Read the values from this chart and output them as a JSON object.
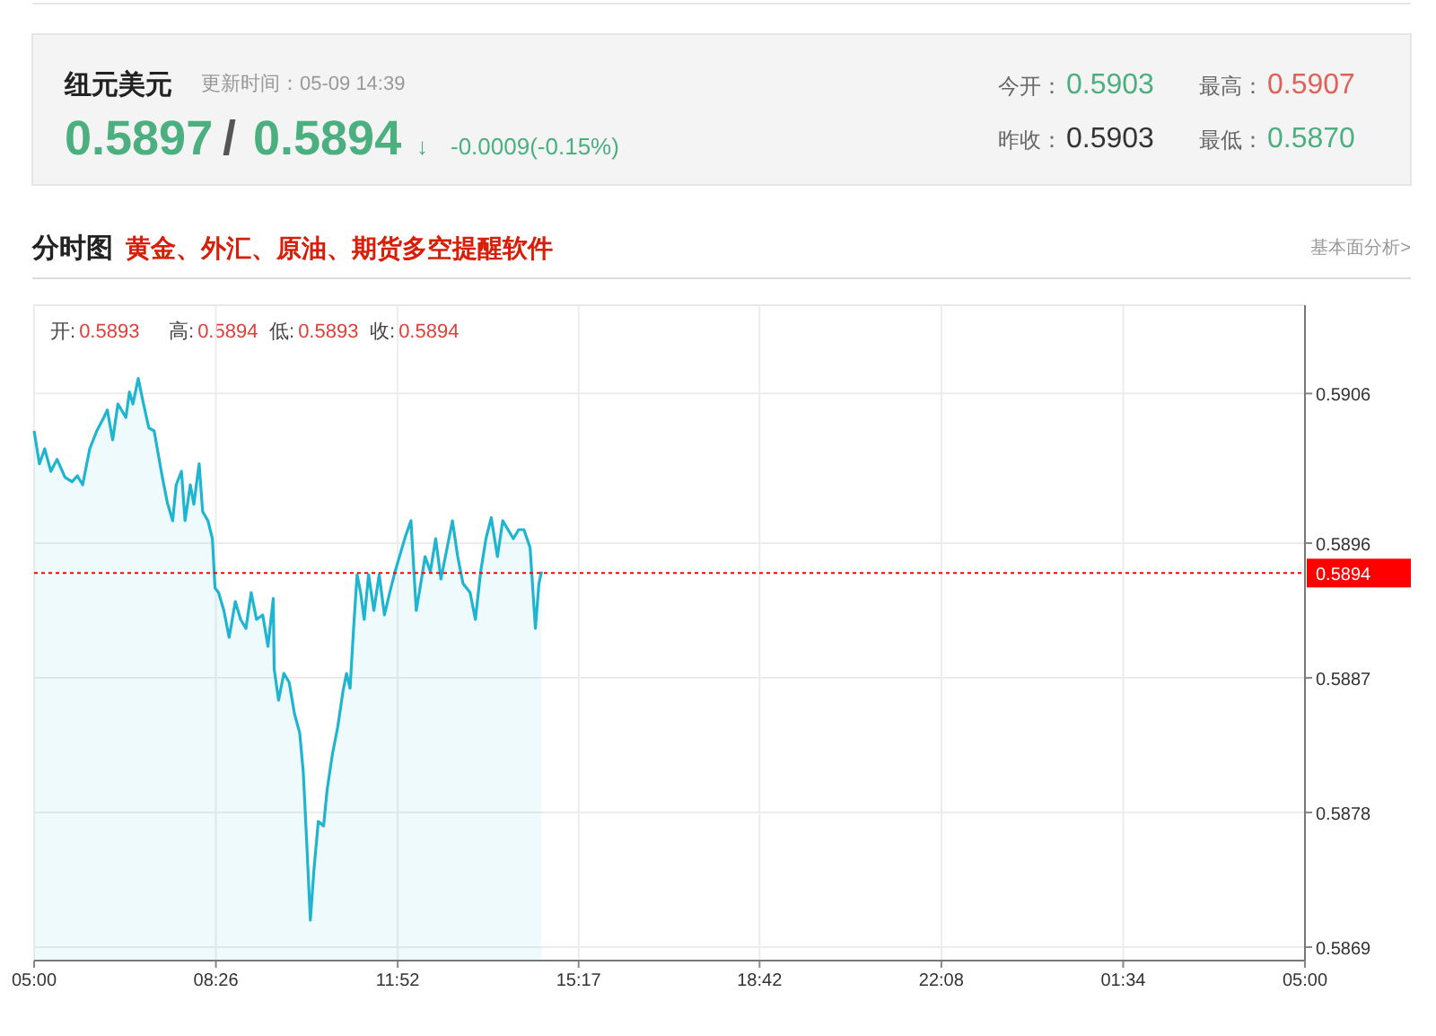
{
  "chart_data": {
    "type": "area",
    "title": "纽元美元",
    "subtitle": "更新时间：05-09 14:39",
    "annotations": [
      "0.5897",
      "/",
      "0.5894",
      "↓",
      "-0.0009(-0.15%)",
      "今开：0.5903",
      "最高：0.5907",
      "昨收：0.5903",
      "最低：0.5870",
      "分时图",
      "黄金、外汇、原油、期货多空提醒软件",
      "基本面分析>",
      "开:0.5893",
      "高:0.5894",
      "低:0.5893",
      "收:0.5894"
    ],
    "xlim": [
      "--05-09T05:00",
      "--05-10T05:00"
    ],
    "xticks": [
      {
        "value": "--05-09T05:00",
        "label": "05:00"
      },
      {
        "value": "--05-09T08:26",
        "label": "08:26"
      },
      {
        "value": "--05-09T11:52",
        "label": "11:52"
      },
      {
        "value": "--05-09T15:17",
        "label": "15:17"
      },
      {
        "value": "--05-09T18:42",
        "label": "18:42"
      },
      {
        "value": "--05-09T22:08",
        "label": "22:08"
      },
      {
        "value": "--05-10T01:34",
        "label": "01:34"
      },
      {
        "value": "--05-10T05:00",
        "label": "05:00"
      }
    ],
    "ylim": [
      0.58681,
      0.59119
    ],
    "yticks": [
      0.5906,
      0.5896,
      0.5887,
      0.5878,
      0.5869
    ],
    "grid": true,
    "ref_lines": [
      {
        "axis": "y",
        "value": 0.5894,
        "label": "0.5894",
        "color": "#ff0000",
        "line_style": "dotted"
      }
    ],
    "series": [
      {
        "color": "#1fb5d0",
        "x": [
          "--05-09T05:00",
          "--05-09T05:06",
          "--05-09T05:12",
          "--05-09T05:19",
          "--05-09T05:26",
          "--05-09T05:35",
          "--05-09T05:43",
          "--05-09T05:49",
          "--05-09T05:55",
          "--05-09T06:03",
          "--05-09T06:11",
          "--05-09T06:19",
          "--05-09T06:23",
          "--05-09T06:29",
          "--05-09T06:35",
          "--05-09T06:44",
          "--05-09T06:48",
          "--05-09T06:52",
          "--05-09T06:58",
          "--05-09T07:04",
          "--05-09T07:10",
          "--05-09T07:16",
          "--05-09T07:25",
          "--05-09T07:31",
          "--05-09T07:37",
          "--05-09T07:41",
          "--05-09T07:47",
          "--05-09T07:51",
          "--05-09T07:57",
          "--05-09T08:01",
          "--05-09T08:07",
          "--05-09T08:11",
          "--05-09T08:17",
          "--05-09T08:22",
          "--05-09T08:25",
          "--05-09T08:29",
          "--05-09T08:35",
          "--05-09T08:41",
          "--05-09T08:48",
          "--05-09T08:54",
          "--05-09T09:00",
          "--05-09T09:06",
          "--05-09T09:12",
          "--05-09T09:19",
          "--05-09T09:25",
          "--05-09T09:31",
          "--05-09T09:32",
          "--05-09T09:37",
          "--05-09T09:43",
          "--05-09T09:49",
          "--05-09T09:55",
          "--05-09T10:01",
          "--05-09T10:05",
          "--05-09T10:09",
          "--05-09T10:13",
          "--05-09T10:17",
          "--05-09T10:22",
          "--05-09T10:28",
          "--05-09T10:32",
          "--05-09T10:38",
          "--05-09T10:44",
          "--05-09T10:50",
          "--05-09T10:54",
          "--05-09T10:58",
          "--05-09T11:02",
          "--05-09T11:06",
          "--05-09T11:10",
          "--05-09T11:14",
          "--05-09T11:19",
          "--05-09T11:25",
          "--05-09T11:31",
          "--05-09T11:37",
          "--05-09T11:43",
          "--05-09T11:49",
          "--05-09T11:55",
          "--05-09T12:01",
          "--05-09T12:07",
          "--05-09T12:13",
          "--05-09T12:17",
          "--05-09T12:23",
          "--05-09T12:29",
          "--05-09T12:35",
          "--05-09T12:41",
          "--05-09T12:48",
          "--05-09T12:54",
          "--05-09T13:00",
          "--05-09T13:06",
          "--05-09T13:14",
          "--05-09T13:20",
          "--05-09T13:26",
          "--05-09T13:32",
          "--05-09T13:38",
          "--05-09T13:45",
          "--05-09T13:51",
          "--05-09T13:57",
          "--05-09T14:03",
          "--05-09T14:09",
          "--05-09T14:15",
          "--05-09T14:22",
          "--05-09T14:28",
          "--05-09T14:32",
          "--05-09T14:35"
        ],
        "values": [
          0.59035,
          0.59013,
          0.59023,
          0.59008,
          0.59016,
          0.59004,
          0.59001,
          0.59005,
          0.58999,
          0.59023,
          0.59035,
          0.59044,
          0.59049,
          0.59029,
          0.59053,
          0.59044,
          0.59061,
          0.59053,
          0.5907,
          0.59053,
          0.59037,
          0.59035,
          0.59005,
          0.58987,
          0.58975,
          0.58999,
          0.59008,
          0.58975,
          0.58999,
          0.58986,
          0.59013,
          0.58981,
          0.58975,
          0.58963,
          0.5893,
          0.58927,
          0.58915,
          0.58897,
          0.58921,
          0.58909,
          0.58903,
          0.58927,
          0.58909,
          0.58912,
          0.58891,
          0.58923,
          0.58876,
          0.58855,
          0.58873,
          0.58867,
          0.58846,
          0.58833,
          0.58807,
          0.58759,
          0.58708,
          0.58741,
          0.58774,
          0.58771,
          0.58795,
          0.58819,
          0.58837,
          0.58861,
          0.58873,
          0.58863,
          0.58903,
          0.58939,
          0.58927,
          0.58909,
          0.58939,
          0.58915,
          0.58939,
          0.58912,
          0.58927,
          0.58941,
          0.58953,
          0.58965,
          0.58975,
          0.58915,
          0.58929,
          0.58951,
          0.58941,
          0.58963,
          0.58936,
          0.58957,
          0.58975,
          0.58951,
          0.58933,
          0.58927,
          0.58909,
          0.58941,
          0.58963,
          0.58977,
          0.58951,
          0.58975,
          0.58969,
          0.58963,
          0.58969,
          0.58969,
          0.58957,
          0.58903,
          0.58933,
          0.58941
        ]
      }
    ]
  }
}
